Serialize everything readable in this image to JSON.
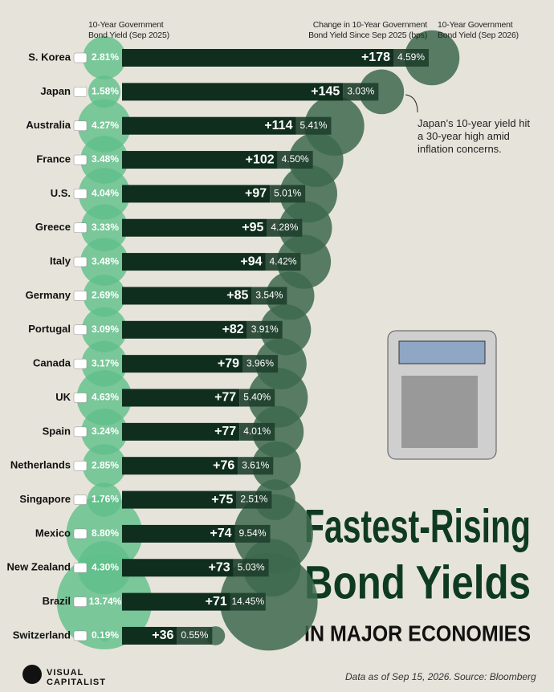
{
  "chart_data": {
    "type": "bar",
    "orientation": "horizontal",
    "title": "Fastest-Rising",
    "title_line2": "Bond Yields",
    "subtitle": "IN MAJOR ECONOMIES",
    "annotation": "Japan’s 10-year yield hit a 30-year high amid inflation concerns.",
    "footnote": "Data as of Sep 15, 2026.",
    "source": "Source: Bloomberg",
    "brand": [
      "VISUAL",
      "CAPITALIST"
    ],
    "categories": [
      "S. Korea",
      "Japan",
      "Australia",
      "France",
      "U.S.",
      "Greece",
      "Italy",
      "Germany",
      "Portugal",
      "Canada",
      "UK",
      "Spain",
      "Netherlands",
      "Singapore",
      "Mexico",
      "New Zealand",
      "Brazil",
      "Switzerland"
    ],
    "series": [
      {
        "name": "10-Year Government Bond Yield (Sep 2025)",
        "color": "#5fbf8a",
        "values": [
          2.81,
          1.58,
          4.27,
          3.48,
          4.04,
          3.33,
          3.48,
          2.69,
          3.09,
          3.17,
          4.63,
          3.24,
          2.85,
          1.76,
          8.8,
          4.3,
          13.74,
          0.19
        ],
        "value_labels": [
          "2.81%",
          "1.58%",
          "4.27%",
          "3.48%",
          "4.04%",
          "3.33%",
          "3.48%",
          "2.69%",
          "3.09%",
          "3.17%",
          "4.63%",
          "3.24%",
          "2.85%",
          "1.76%",
          "8.80%",
          "4.30%",
          "13.74%",
          "0.19%"
        ]
      },
      {
        "name": "Change in 10-Year Government Bond Yield Since Sep 2025 (bps)",
        "color": "#0f2e1e",
        "values": [
          178,
          145,
          114,
          102,
          97,
          95,
          94,
          85,
          82,
          79,
          77,
          77,
          76,
          75,
          74,
          73,
          71,
          36
        ],
        "value_labels": [
          "+178",
          "+145",
          "+114",
          "+102",
          "+97",
          "+95",
          "+94",
          "+85",
          "+82",
          "+79",
          "+77",
          "+77",
          "+76",
          "+75",
          "+74",
          "+73",
          "+71",
          "+36"
        ]
      },
      {
        "name": "10-Year Government Bond Yield (Sep 2026)",
        "color": "#3d6a4e",
        "values": [
          4.59,
          3.03,
          5.41,
          4.5,
          5.01,
          4.28,
          4.42,
          3.54,
          3.91,
          3.96,
          5.4,
          4.01,
          3.61,
          2.51,
          9.54,
          5.03,
          14.45,
          0.55
        ],
        "value_labels": [
          "4.59%",
          "3.03%",
          "5.41%",
          "4.50%",
          "5.01%",
          "4.28%",
          "4.42%",
          "3.54%",
          "3.91%",
          "3.96%",
          "5.40%",
          "4.01%",
          "3.61%",
          "2.51%",
          "9.54%",
          "5.03%",
          "14.45%",
          "0.55%"
        ]
      }
    ]
  }
}
